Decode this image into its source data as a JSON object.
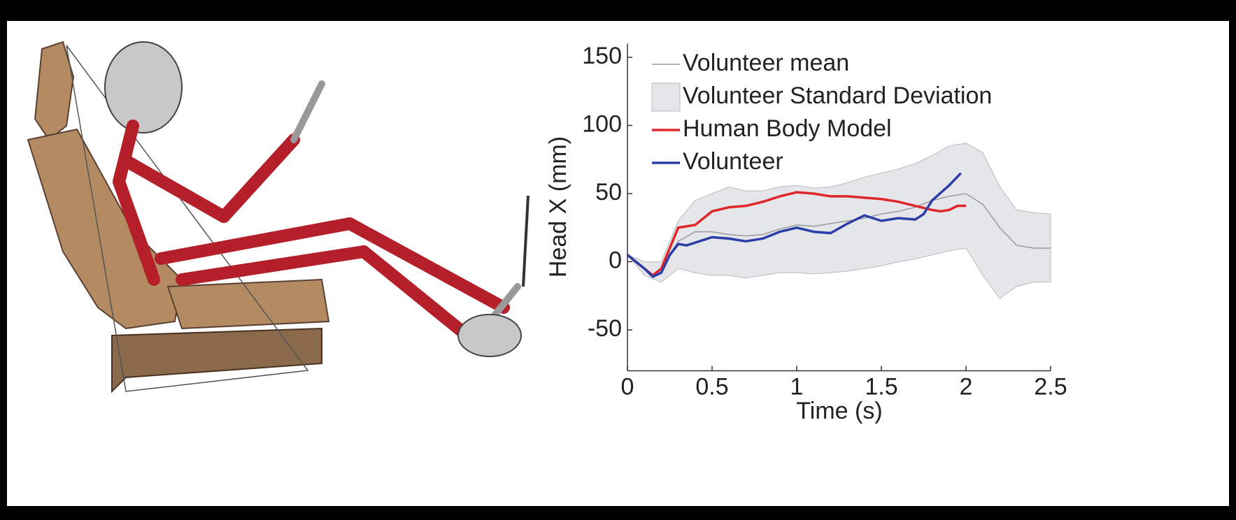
{
  "chart_data": {
    "type": "line",
    "x_label": "Time (s)",
    "y_label": "Head X (mm)",
    "xlim": [
      0,
      2.5
    ],
    "ylim": [
      -80,
      160
    ],
    "xticks": [
      0,
      0.5,
      1,
      1.5,
      2,
      2.5
    ],
    "yticks": [
      -50,
      0,
      50,
      100,
      150
    ],
    "legend": "upper left",
    "series": [
      {
        "name": "Volunteer mean",
        "color": "#9a9a9a",
        "x": [
          0,
          0.1,
          0.15,
          0.2,
          0.3,
          0.4,
          0.5,
          0.6,
          0.7,
          0.8,
          0.9,
          1.0,
          1.1,
          1.2,
          1.3,
          1.4,
          1.5,
          1.6,
          1.7,
          1.8,
          1.9,
          2.0,
          2.1,
          2.2,
          2.3,
          2.4,
          2.5
        ],
        "values": [
          5,
          -5,
          -10,
          -5,
          15,
          22,
          22,
          20,
          19,
          20,
          24,
          27,
          26,
          28,
          30,
          32,
          35,
          37,
          40,
          45,
          48,
          50,
          42,
          25,
          12,
          10,
          10
        ]
      },
      {
        "name": "Volunteer Standard Deviation",
        "color": "#e4e6ea",
        "style": "band",
        "x": [
          0,
          0.1,
          0.2,
          0.3,
          0.4,
          0.5,
          0.6,
          0.7,
          0.8,
          0.9,
          1.0,
          1.1,
          1.2,
          1.3,
          1.4,
          1.5,
          1.6,
          1.7,
          1.8,
          1.9,
          2.0,
          2.1,
          2.2,
          2.3,
          2.4,
          2.5
        ],
        "upper": [
          5,
          0,
          0,
          30,
          45,
          50,
          55,
          52,
          52,
          55,
          56,
          54,
          55,
          58,
          62,
          65,
          68,
          72,
          78,
          85,
          87,
          80,
          55,
          38,
          36,
          35
        ],
        "lower": [
          5,
          -10,
          -15,
          -5,
          -8,
          -10,
          -10,
          -12,
          -10,
          -8,
          -8,
          -9,
          -8,
          -7,
          -5,
          -3,
          0,
          2,
          5,
          8,
          10,
          -10,
          -27,
          -18,
          -15,
          -15
        ]
      },
      {
        "name": "Human Body Model",
        "color": "#e0262b",
        "x": [
          0,
          0.1,
          0.15,
          0.2,
          0.25,
          0.3,
          0.4,
          0.5,
          0.6,
          0.7,
          0.8,
          0.9,
          1.0,
          1.1,
          1.2,
          1.3,
          1.4,
          1.5,
          1.6,
          1.7,
          1.8,
          1.85,
          1.9,
          1.95,
          2.0
        ],
        "values": [
          5,
          -5,
          -10,
          -5,
          10,
          25,
          27,
          37,
          40,
          41,
          44,
          48,
          51,
          50,
          48,
          48,
          47,
          46,
          44,
          41,
          38,
          37,
          38,
          41,
          41
        ]
      },
      {
        "name": "Volunteer",
        "color": "#2b3ea8",
        "x": [
          0,
          0.1,
          0.15,
          0.2,
          0.25,
          0.3,
          0.35,
          0.4,
          0.5,
          0.6,
          0.7,
          0.8,
          0.9,
          1.0,
          1.1,
          1.2,
          1.3,
          1.4,
          1.5,
          1.6,
          1.7,
          1.75,
          1.8,
          1.9,
          1.97
        ],
        "values": [
          5,
          -5,
          -11,
          -8,
          5,
          13,
          12,
          14,
          18,
          17,
          15,
          17,
          22,
          25,
          22,
          21,
          28,
          34,
          30,
          32,
          31,
          35,
          45,
          56,
          65
        ]
      }
    ]
  }
}
